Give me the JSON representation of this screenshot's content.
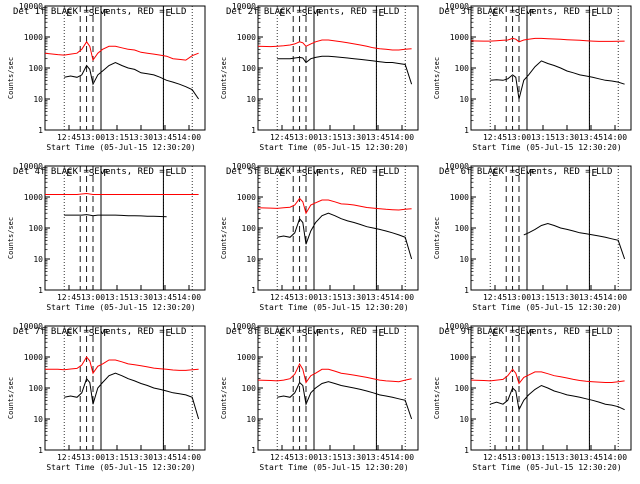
{
  "common": {
    "xlabel": "Start Time (05-Jul-15 12:30:20)",
    "ylabel": "Counts/sec",
    "x_tick_labels": [
      "12:45",
      "13:00",
      "13:15",
      "13:30",
      "13:45",
      "14:00"
    ],
    "y_tick_labels": [
      "1",
      "10",
      "100",
      "1000",
      "10000"
    ],
    "marker_labels": [
      "E",
      "S",
      "F",
      "E"
    ],
    "colors": {
      "events": "#000000",
      "lld": "#ff0000"
    }
  },
  "chart_data": [
    {
      "type": "line",
      "title": "Det 1f BLACK = Events, RED = LLD",
      "xlabel": "Start Time (05-Jul-15 12:30:20)",
      "ylabel": "Counts/sec",
      "x_range": [
        "12:30",
        "14:10"
      ],
      "ylim": [
        1,
        10000
      ],
      "y_scale": "log",
      "x_tick_labels": [
        "12:45",
        "13:00",
        "13:15",
        "13:30",
        "13:45",
        "14:00"
      ],
      "y_tick_labels": [
        "1",
        "10",
        "100",
        "1000",
        "10000"
      ],
      "x": [
        "12:30",
        "12:38",
        "12:42",
        "12:46",
        "12:50",
        "12:53",
        "12:56",
        "12:58",
        "13:00",
        "13:03",
        "13:06",
        "13:10",
        "13:14",
        "13:18",
        "13:22",
        "13:26",
        "13:30",
        "13:34",
        "13:38",
        "13:42",
        "13:46",
        "13:50",
        "13:54",
        "13:58",
        "14:02",
        "14:06"
      ],
      "series": [
        {
          "name": "Events",
          "color": "#000000",
          "values": [
            null,
            null,
            50,
            55,
            50,
            60,
            120,
            90,
            30,
            60,
            80,
            120,
            150,
            120,
            100,
            90,
            70,
            65,
            60,
            50,
            40,
            35,
            30,
            25,
            20,
            10
          ]
        },
        {
          "name": "LLD",
          "color": "#ff0000",
          "values": [
            300,
            270,
            260,
            280,
            300,
            400,
            700,
            500,
            180,
            300,
            400,
            500,
            500,
            450,
            400,
            380,
            320,
            300,
            280,
            260,
            240,
            200,
            190,
            180,
            250,
            300
          ]
        }
      ]
    },
    {
      "type": "line",
      "title": "Det 2f BLACK = Events, RED = LLD",
      "xlabel": "Start Time (05-Jul-15 12:30:20)",
      "ylabel": "Counts/sec",
      "x_range": [
        "12:30",
        "14:10"
      ],
      "ylim": [
        1,
        10000
      ],
      "y_scale": "log",
      "x_tick_labels": [
        "12:45",
        "13:00",
        "13:15",
        "13:30",
        "13:45",
        "14:00"
      ],
      "y_tick_labels": [
        "1",
        "10",
        "100",
        "1000",
        "10000"
      ],
      "x": [
        "12:30",
        "12:38",
        "12:42",
        "12:46",
        "12:50",
        "12:53",
        "12:56",
        "12:58",
        "13:00",
        "13:03",
        "13:06",
        "13:10",
        "13:14",
        "13:18",
        "13:22",
        "13:26",
        "13:30",
        "13:34",
        "13:38",
        "13:42",
        "13:46",
        "13:50",
        "13:54",
        "13:58",
        "14:02",
        "14:06"
      ],
      "series": [
        {
          "name": "Events",
          "color": "#000000",
          "values": [
            null,
            null,
            200,
            200,
            200,
            210,
            220,
            210,
            150,
            200,
            220,
            240,
            240,
            230,
            220,
            210,
            200,
            190,
            180,
            170,
            160,
            150,
            150,
            140,
            130,
            30
          ]
        },
        {
          "name": "LLD",
          "color": "#ff0000",
          "values": [
            500,
            490,
            500,
            520,
            550,
            600,
            700,
            650,
            500,
            600,
            700,
            800,
            800,
            750,
            700,
            650,
            600,
            550,
            500,
            450,
            420,
            400,
            380,
            380,
            400,
            420
          ]
        }
      ]
    },
    {
      "type": "line",
      "title": "Det 3f BLACK = Events, RED = LLD",
      "xlabel": "Start Time (05-Jul-15 12:30:20)",
      "ylabel": "Counts/sec",
      "x_range": [
        "12:30",
        "14:10"
      ],
      "ylim": [
        1,
        10000
      ],
      "y_scale": "log",
      "x_tick_labels": [
        "12:45",
        "13:00",
        "13:15",
        "13:30",
        "13:45",
        "14:00"
      ],
      "y_tick_labels": [
        "1",
        "10",
        "100",
        "1000",
        "10000"
      ],
      "x": [
        "12:30",
        "12:38",
        "12:42",
        "12:46",
        "12:50",
        "12:53",
        "12:56",
        "12:58",
        "13:00",
        "13:03",
        "13:06",
        "13:10",
        "13:14",
        "13:18",
        "13:22",
        "13:26",
        "13:30",
        "13:34",
        "13:38",
        "13:42",
        "13:46",
        "13:50",
        "13:54",
        "13:58",
        "14:02",
        "14:06"
      ],
      "series": [
        {
          "name": "Events",
          "color": "#000000",
          "values": [
            null,
            null,
            40,
            42,
            40,
            45,
            60,
            50,
            10,
            40,
            60,
            110,
            170,
            140,
            120,
            100,
            80,
            70,
            60,
            55,
            50,
            45,
            40,
            38,
            35,
            30
          ]
        },
        {
          "name": "LLD",
          "color": "#ff0000",
          "values": [
            750,
            740,
            740,
            760,
            780,
            800,
            900,
            850,
            700,
            800,
            850,
            900,
            900,
            880,
            860,
            840,
            820,
            800,
            780,
            760,
            740,
            720,
            720,
            720,
            730,
            740
          ]
        }
      ]
    },
    {
      "type": "line",
      "title": "Det 4f BLACK = Events, RED = LLD",
      "xlabel": "Start Time (05-Jul-15 12:30:20)",
      "ylabel": "Counts/sec",
      "x_range": [
        "12:30",
        "14:10"
      ],
      "ylim": [
        1,
        10000
      ],
      "y_scale": "log",
      "x_tick_labels": [
        "12:45",
        "13:00",
        "13:15",
        "13:30",
        "13:45",
        "14:00"
      ],
      "y_tick_labels": [
        "1",
        "10",
        "100",
        "1000",
        "10000"
      ],
      "x": [
        "12:30",
        "12:38",
        "12:42",
        "12:46",
        "12:50",
        "12:53",
        "12:56",
        "12:58",
        "13:00",
        "13:03",
        "13:06",
        "13:10",
        "13:14",
        "13:18",
        "13:22",
        "13:26",
        "13:30",
        "13:34",
        "13:38",
        "13:42",
        "13:46",
        "13:50",
        "13:54",
        "13:58",
        "14:02",
        "14:06"
      ],
      "series": [
        {
          "name": "Events",
          "color": "#000000",
          "values": [
            null,
            null,
            260,
            260,
            260,
            260,
            270,
            260,
            250,
            260,
            260,
            260,
            260,
            255,
            250,
            250,
            245,
            240,
            240,
            235,
            230,
            null,
            null,
            null,
            null,
            null
          ]
        },
        {
          "name": "LLD",
          "color": "#ff0000",
          "values": [
            1200,
            1200,
            1200,
            1200,
            1200,
            1250,
            1300,
            1250,
            1200,
            1200,
            1200,
            1200,
            1200,
            1200,
            1200,
            1200,
            1200,
            1200,
            1200,
            1200,
            1200,
            1200,
            1200,
            1200,
            1200,
            1200
          ]
        }
      ]
    },
    {
      "type": "line",
      "title": "Det 5f BLACK = Events, RED = LLD",
      "xlabel": "Start Time (05-Jul-15 12:30:20)",
      "ylabel": "Counts/sec",
      "x_range": [
        "12:30",
        "14:10"
      ],
      "ylim": [
        1,
        10000
      ],
      "y_scale": "log",
      "x_tick_labels": [
        "12:45",
        "13:00",
        "13:15",
        "13:30",
        "13:45",
        "14:00"
      ],
      "y_tick_labels": [
        "1",
        "10",
        "100",
        "1000",
        "10000"
      ],
      "x": [
        "12:30",
        "12:38",
        "12:42",
        "12:46",
        "12:50",
        "12:53",
        "12:56",
        "12:58",
        "13:00",
        "13:03",
        "13:06",
        "13:10",
        "13:14",
        "13:18",
        "13:22",
        "13:26",
        "13:30",
        "13:34",
        "13:38",
        "13:42",
        "13:46",
        "13:50",
        "13:54",
        "13:58",
        "14:02",
        "14:06"
      ],
      "series": [
        {
          "name": "Events",
          "color": "#000000",
          "values": [
            null,
            null,
            50,
            55,
            50,
            70,
            200,
            150,
            30,
            80,
            150,
            250,
            300,
            250,
            200,
            170,
            150,
            130,
            110,
            100,
            90,
            80,
            70,
            60,
            50,
            10
          ]
        },
        {
          "name": "LLD",
          "color": "#ff0000",
          "values": [
            450,
            440,
            430,
            450,
            470,
            550,
            900,
            700,
            300,
            550,
            650,
            800,
            800,
            700,
            600,
            580,
            550,
            500,
            460,
            440,
            420,
            400,
            390,
            380,
            400,
            420
          ]
        }
      ]
    },
    {
      "type": "line",
      "title": "Det 6f BLACK = Events, RED = LLD",
      "xlabel": "Start Time (05-Jul-15 12:30:20)",
      "ylabel": "Counts/sec",
      "x_range": [
        "12:30",
        "14:10"
      ],
      "ylim": [
        1,
        10000
      ],
      "y_scale": "log",
      "x_tick_labels": [
        "12:45",
        "13:00",
        "13:15",
        "13:30",
        "13:45",
        "14:00"
      ],
      "y_tick_labels": [
        "1",
        "10",
        "100",
        "1000",
        "10000"
      ],
      "x": [
        "12:30",
        "12:38",
        "12:42",
        "12:46",
        "12:50",
        "12:53",
        "12:56",
        "12:58",
        "13:00",
        "13:03",
        "13:06",
        "13:10",
        "13:14",
        "13:18",
        "13:22",
        "13:26",
        "13:30",
        "13:34",
        "13:38",
        "13:42",
        "13:46",
        "13:50",
        "13:54",
        "13:58",
        "14:02",
        "14:06"
      ],
      "series": [
        {
          "name": "Events",
          "color": "#000000",
          "values": [
            null,
            null,
            null,
            null,
            null,
            null,
            null,
            null,
            null,
            60,
            70,
            90,
            120,
            140,
            120,
            100,
            90,
            80,
            70,
            65,
            60,
            55,
            50,
            45,
            40,
            10
          ]
        }
      ]
    },
    {
      "type": "line",
      "title": "Det 7f BLACK = Events, RED = LLD",
      "xlabel": "Start Time (05-Jul-15 12:30:20)",
      "ylabel": "Counts/sec",
      "x_range": [
        "12:30",
        "14:10"
      ],
      "ylim": [
        1,
        10000
      ],
      "y_scale": "log",
      "x_tick_labels": [
        "12:45",
        "13:00",
        "13:15",
        "13:30",
        "13:45",
        "14:00"
      ],
      "y_tick_labels": [
        "1",
        "10",
        "100",
        "1000",
        "10000"
      ],
      "x": [
        "12:30",
        "12:38",
        "12:42",
        "12:46",
        "12:50",
        "12:53",
        "12:56",
        "12:58",
        "13:00",
        "13:03",
        "13:06",
        "13:10",
        "13:14",
        "13:18",
        "13:22",
        "13:26",
        "13:30",
        "13:34",
        "13:38",
        "13:42",
        "13:46",
        "13:50",
        "13:54",
        "13:58",
        "14:02",
        "14:06"
      ],
      "series": [
        {
          "name": "Events",
          "color": "#000000",
          "values": [
            null,
            null,
            50,
            55,
            50,
            70,
            200,
            150,
            30,
            100,
            150,
            250,
            300,
            250,
            200,
            170,
            140,
            120,
            100,
            90,
            80,
            70,
            65,
            60,
            50,
            10
          ]
        },
        {
          "name": "LLD",
          "color": "#ff0000",
          "values": [
            400,
            400,
            390,
            410,
            430,
            550,
            1000,
            750,
            300,
            500,
            600,
            800,
            800,
            700,
            600,
            560,
            520,
            480,
            440,
            420,
            400,
            380,
            370,
            370,
            390,
            400
          ]
        }
      ]
    },
    {
      "type": "line",
      "title": "Det 8f BLACK = Events, RED = LLD",
      "xlabel": "Start Time (05-Jul-15 12:30:20)",
      "ylabel": "Counts/sec",
      "x_range": [
        "12:30",
        "14:10"
      ],
      "ylim": [
        1,
        10000
      ],
      "y_scale": "log",
      "x_tick_labels": [
        "12:45",
        "13:00",
        "13:15",
        "13:30",
        "13:45",
        "14:00"
      ],
      "y_tick_labels": [
        "1",
        "10",
        "100",
        "1000",
        "10000"
      ],
      "x": [
        "12:30",
        "12:38",
        "12:42",
        "12:46",
        "12:50",
        "12:53",
        "12:56",
        "12:58",
        "13:00",
        "13:03",
        "13:06",
        "13:10",
        "13:14",
        "13:18",
        "13:22",
        "13:26",
        "13:30",
        "13:34",
        "13:38",
        "13:42",
        "13:46",
        "13:50",
        "13:54",
        "13:58",
        "14:02",
        "14:06"
      ],
      "series": [
        {
          "name": "Events",
          "color": "#000000",
          "values": [
            null,
            null,
            50,
            55,
            50,
            70,
            150,
            120,
            30,
            70,
            100,
            140,
            160,
            140,
            120,
            110,
            100,
            90,
            80,
            70,
            60,
            55,
            50,
            45,
            40,
            10
          ]
        },
        {
          "name": "LLD",
          "color": "#ff0000",
          "values": [
            180,
            175,
            170,
            180,
            200,
            280,
            600,
            400,
            150,
            250,
            300,
            400,
            400,
            350,
            300,
            280,
            260,
            240,
            220,
            200,
            180,
            170,
            165,
            160,
            180,
            200
          ]
        }
      ]
    },
    {
      "type": "line",
      "title": "Det 9f BLACK = Events, RED = LLD",
      "xlabel": "Start Time (05-Jul-15 12:30:20)",
      "ylabel": "Counts/sec",
      "x_range": [
        "12:30",
        "14:10"
      ],
      "ylim": [
        1,
        10000
      ],
      "y_scale": "log",
      "x_tick_labels": [
        "12:45",
        "13:00",
        "13:15",
        "13:30",
        "13:45",
        "14:00"
      ],
      "y_tick_labels": [
        "1",
        "10",
        "100",
        "1000",
        "10000"
      ],
      "x": [
        "12:30",
        "12:38",
        "12:42",
        "12:46",
        "12:50",
        "12:53",
        "12:56",
        "12:58",
        "13:00",
        "13:03",
        "13:06",
        "13:10",
        "13:14",
        "13:18",
        "13:22",
        "13:26",
        "13:30",
        "13:34",
        "13:38",
        "13:42",
        "13:46",
        "13:50",
        "13:54",
        "13:58",
        "14:02",
        "14:06"
      ],
      "series": [
        {
          "name": "Events",
          "color": "#000000",
          "values": [
            null,
            null,
            30,
            35,
            30,
            40,
            100,
            80,
            20,
            40,
            60,
            90,
            120,
            100,
            80,
            70,
            60,
            55,
            50,
            45,
            40,
            35,
            30,
            28,
            25,
            20
          ]
        },
        {
          "name": "LLD",
          "color": "#ff0000",
          "values": [
            180,
            175,
            170,
            180,
            190,
            250,
            400,
            300,
            140,
            220,
            260,
            330,
            330,
            290,
            250,
            230,
            210,
            190,
            175,
            165,
            160,
            155,
            150,
            150,
            160,
            170
          ]
        }
      ]
    }
  ]
}
